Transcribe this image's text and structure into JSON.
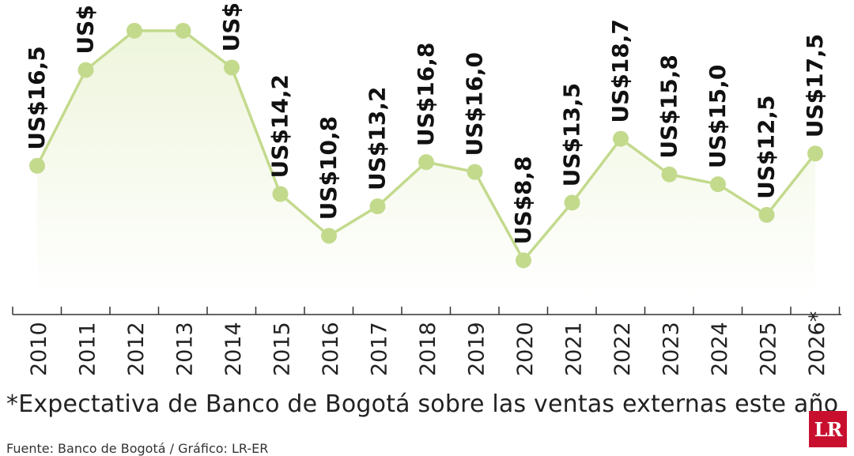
{
  "chart_data": {
    "type": "line",
    "categories": [
      "2010",
      "2011",
      "2012",
      "2013",
      "2014",
      "2015",
      "2016",
      "2017",
      "2018",
      "2019",
      "2020",
      "2021",
      "2022",
      "2023",
      "2024",
      "2025",
      "2026*"
    ],
    "values": [
      16.5,
      24.3,
      27.5,
      27.5,
      24.5,
      14.2,
      10.8,
      13.2,
      16.8,
      16.0,
      8.8,
      13.5,
      18.7,
      15.8,
      15.0,
      12.5,
      17.5
    ],
    "labels": [
      "US$16,5",
      "US$",
      "",
      "",
      "US$",
      "US$14,2",
      "US$10,8",
      "US$13,2",
      "US$16,8",
      "US$16,0",
      "US$8,8",
      "US$13,5",
      "US$18,7",
      "US$15,8",
      "US$15,0",
      "US$12,5",
      "US$17,5"
    ],
    "ylim": [
      4.9,
      30
    ],
    "colors": {
      "line": "#c3da8d",
      "area": "#eef5dc",
      "text": "#111111",
      "axis": "#333333"
    }
  },
  "footnote": "*Expectativa de Banco de Bogotá sobre las ventas externas este año",
  "source": "Fuente: Banco de Bogotá / Gráfico: LR-ER",
  "logo": "LR"
}
